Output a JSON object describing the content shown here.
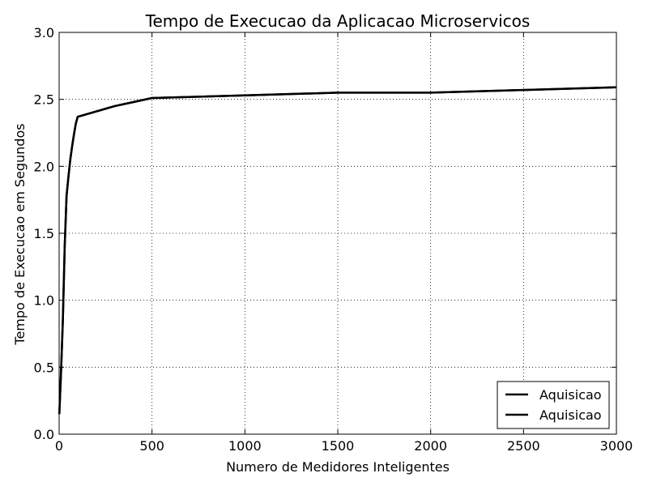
{
  "chart_data": {
    "type": "line",
    "title": "Tempo de Execucao da Aplicacao Microservicos",
    "xlabel": "Numero de Medidores Inteligentes",
    "ylabel": "Tempo de Execucao em Segundos",
    "xlim": [
      0,
      3000
    ],
    "ylim": [
      0.0,
      3.0
    ],
    "xticks": [
      0,
      500,
      1000,
      1500,
      2000,
      2500,
      3000
    ],
    "xtick_labels": [
      "0",
      "500",
      "1000",
      "1500",
      "2000",
      "2500",
      "3000"
    ],
    "yticks": [
      0.0,
      0.5,
      1.0,
      1.5,
      2.0,
      2.5,
      3.0
    ],
    "ytick_labels": [
      "0.0",
      "0.5",
      "1.0",
      "1.5",
      "2.0",
      "2.5",
      "3.0"
    ],
    "grid": true,
    "legend_position": "bottom-right",
    "series": [
      {
        "name": "Aquisicao",
        "color": "#000000",
        "x": [
          1,
          10,
          20,
          30,
          40,
          50,
          60,
          70,
          80,
          90,
          100,
          200,
          300,
          400,
          500,
          1000,
          1500,
          2000,
          2500,
          3000
        ],
        "y": [
          0.15,
          0.45,
          0.85,
          1.4,
          1.78,
          1.92,
          2.05,
          2.15,
          2.24,
          2.32,
          2.37,
          2.41,
          2.45,
          2.48,
          2.51,
          2.53,
          2.55,
          2.55,
          2.57,
          2.59
        ]
      },
      {
        "name": "Aquisicao",
        "color": "#000000",
        "x": [
          1,
          10,
          20,
          30,
          40,
          50,
          60,
          70,
          80,
          90,
          100,
          200,
          300,
          400,
          500,
          1000,
          1500,
          2000,
          2500,
          3000
        ],
        "y": [
          0.15,
          0.45,
          0.85,
          1.4,
          1.78,
          1.92,
          2.05,
          2.15,
          2.24,
          2.32,
          2.37,
          2.41,
          2.45,
          2.48,
          2.51,
          2.53,
          2.55,
          2.55,
          2.57,
          2.59
        ]
      }
    ]
  }
}
